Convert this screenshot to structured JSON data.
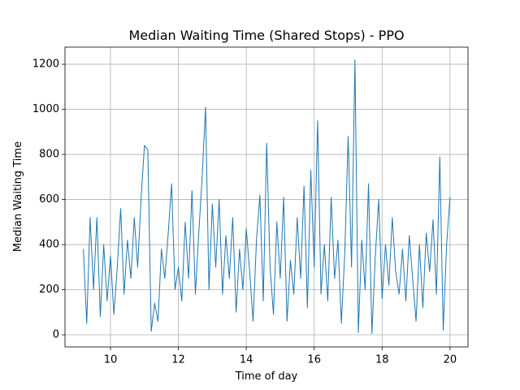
{
  "chart_data": {
    "type": "line",
    "title": "Median Waiting Time (Shared Stops) - PPO",
    "xlabel": "Time of day",
    "ylabel": "Median Waiting Time",
    "x": [
      9.2,
      9.3,
      9.4,
      9.5,
      9.6,
      9.7,
      9.8,
      9.9,
      10.0,
      10.1,
      10.2,
      10.3,
      10.4,
      10.5,
      10.6,
      10.7,
      10.8,
      10.9,
      11.0,
      11.1,
      11.2,
      11.3,
      11.4,
      11.5,
      11.6,
      11.7,
      11.8,
      11.9,
      12.0,
      12.1,
      12.2,
      12.3,
      12.4,
      12.5,
      12.6,
      12.7,
      12.8,
      12.9,
      13.0,
      13.1,
      13.2,
      13.3,
      13.4,
      13.5,
      13.6,
      13.7,
      13.8,
      13.9,
      14.0,
      14.1,
      14.2,
      14.3,
      14.4,
      14.5,
      14.6,
      14.7,
      14.8,
      14.9,
      15.0,
      15.1,
      15.2,
      15.3,
      15.4,
      15.5,
      15.6,
      15.7,
      15.8,
      15.9,
      16.0,
      16.1,
      16.2,
      16.3,
      16.4,
      16.5,
      16.6,
      16.7,
      16.8,
      16.9,
      17.0,
      17.1,
      17.2,
      17.3,
      17.4,
      17.5,
      17.6,
      17.7,
      17.8,
      17.9,
      18.0,
      18.1,
      18.2,
      18.3,
      18.4,
      18.5,
      18.6,
      18.7,
      18.8,
      18.9,
      19.0,
      19.1,
      19.2,
      19.3,
      19.4,
      19.5,
      19.6,
      19.7,
      19.8,
      19.9,
      20.0
    ],
    "values": [
      380,
      50,
      520,
      200,
      520,
      80,
      400,
      150,
      350,
      90,
      300,
      560,
      180,
      420,
      250,
      520,
      300,
      600,
      840,
      820,
      15,
      140,
      60,
      380,
      250,
      450,
      670,
      200,
      300,
      150,
      500,
      250,
      640,
      180,
      450,
      700,
      1010,
      200,
      580,
      300,
      600,
      180,
      440,
      250,
      520,
      100,
      380,
      200,
      470,
      280,
      60,
      420,
      620,
      150,
      850,
      300,
      90,
      500,
      250,
      610,
      60,
      330,
      180,
      520,
      250,
      660,
      120,
      730,
      300,
      950,
      180,
      400,
      150,
      610,
      250,
      420,
      50,
      360,
      880,
      300,
      1220,
      10,
      420,
      200,
      670,
      5,
      350,
      600,
      160,
      400,
      220,
      520,
      280,
      180,
      380,
      150,
      440,
      250,
      60,
      400,
      120,
      450,
      280,
      510,
      180,
      790,
      20,
      400,
      610
    ],
    "color": "#1f77b4",
    "xlim": [
      8.66,
      20.53
    ],
    "xticks": [
      10,
      12,
      14,
      16,
      18,
      20
    ],
    "ylim": [
      -54,
      1276
    ],
    "yticks": [
      0,
      200,
      400,
      600,
      800,
      1000,
      1200
    ],
    "grid": true
  }
}
